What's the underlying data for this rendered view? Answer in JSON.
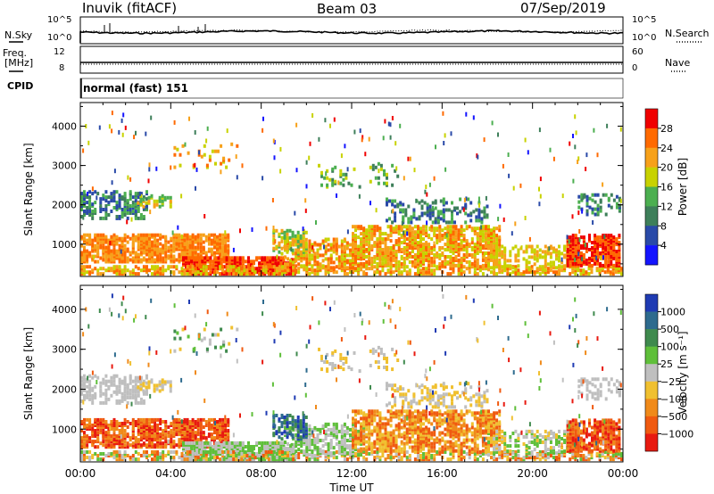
{
  "header": {
    "station": "Inuvik (fitACF)",
    "beam": "Beam 03",
    "date": "07/Sep/2019"
  },
  "top_panels": {
    "nsky_label": "N.Sky",
    "nsky_ticks": [
      "10^5",
      "10^0"
    ],
    "nsearch_label": "N.Search",
    "nsearch_ticks": [
      "10^5",
      "10^0"
    ],
    "freq_label": "Freq.",
    "freq_unit": "[MHz]",
    "freq_ticks": [
      "12",
      "8"
    ],
    "nave_label": "Nave",
    "nave_ticks": [
      "60",
      "0"
    ],
    "cpid_label": "CPID",
    "cpid_value": "normal (fast) 151"
  },
  "chart_data": [
    {
      "type": "heatmap",
      "name": "power",
      "ylabel": "Slant Range [km]",
      "ylim": [
        180,
        4600
      ],
      "yticks": [
        1000,
        2000,
        3000,
        4000
      ],
      "x_hours": [
        0,
        24
      ],
      "colorbar_label": "Power [dB]",
      "colorbar_ticks": [
        "4",
        "8",
        "12",
        "16",
        "20",
        "24",
        "28"
      ],
      "colorbar_colors": [
        "#1414ff",
        "#2a4aa8",
        "#3e7f5a",
        "#4caf50",
        "#c8d200",
        "#f7a11a",
        "#ff6a00",
        "#f00000"
      ]
    },
    {
      "type": "heatmap",
      "name": "velocity",
      "ylabel": "Slant Range [km]",
      "ylim": [
        180,
        4600
      ],
      "yticks": [
        1000,
        2000,
        3000,
        4000
      ],
      "x_hours": [
        0,
        24
      ],
      "colorbar_label": "Velocity [m s⁻¹]",
      "colorbar_ticks": [
        "1000",
        "500",
        "100",
        "25",
        "−25",
        "−100",
        "−500",
        "−1000"
      ],
      "colorbar_colors": [
        "#1f3bb3",
        "#2e6b8e",
        "#3f8a4e",
        "#5fbf3a",
        "#bfbfbf",
        "#f0c030",
        "#f08a1a",
        "#f05a10",
        "#e81a10"
      ]
    }
  ],
  "xaxis": {
    "ticks": [
      "00:00",
      "04:00",
      "08:00",
      "12:00",
      "16:00",
      "20:00",
      "00:00"
    ],
    "label": "Time UT"
  }
}
